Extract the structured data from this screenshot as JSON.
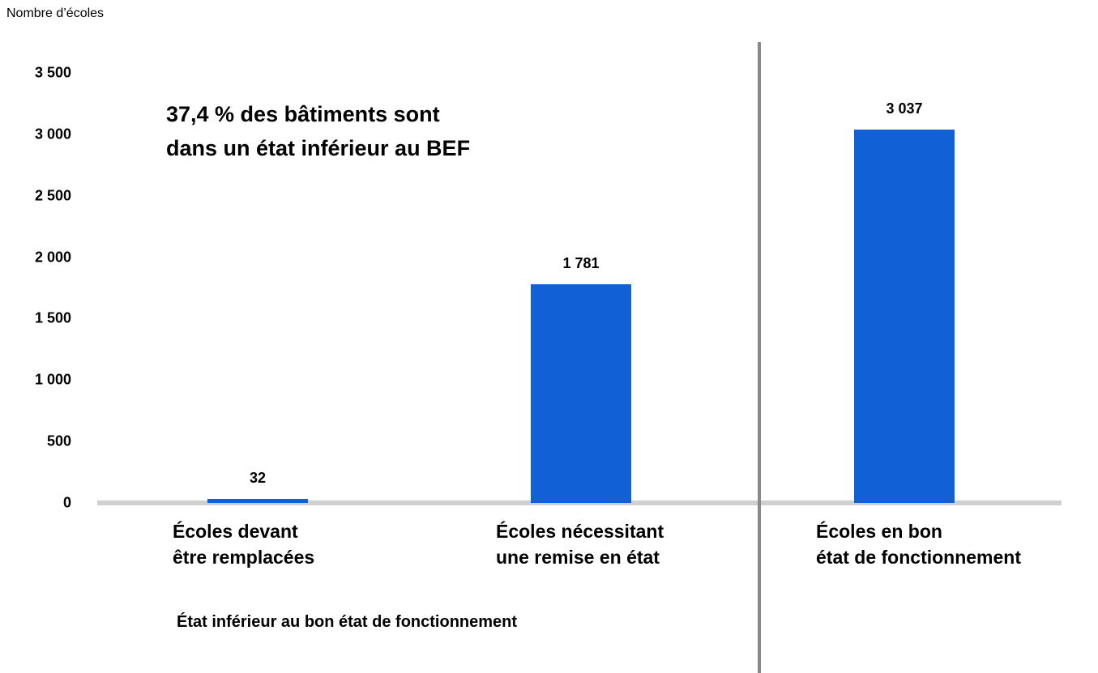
{
  "chart_data": {
    "type": "bar",
    "y_label": "Nombre d’écoles",
    "annotation": "37,4 % des bâtiments sont\ndans un état inférieur au BEF",
    "group_label": "État inférieur au bon état de fonctionnement",
    "categories": [
      "Écoles devant\nêtre remplacées",
      "Écoles nécessitant\nune remise en état",
      "Écoles en bon\nétat de fonctionnement"
    ],
    "values": [
      32,
      1781,
      3037
    ],
    "value_labels": [
      "32",
      "1 781",
      "3 037"
    ],
    "color": "#1160d6",
    "ylim": [
      0,
      3500
    ],
    "yticks": [
      0,
      {
        "value": 500,
        "label": "500"
      },
      {
        "value": 1000,
        "label": "1 000"
      },
      {
        "value": 1500,
        "label": "1 500"
      },
      {
        "value": 2000,
        "label": "2 000"
      },
      {
        "value": 2500,
        "label": "2 500"
      },
      {
        "value": 3000,
        "label": "3 000"
      },
      {
        "value": 3500,
        "label": "3 500"
      }
    ],
    "grid": false
  }
}
